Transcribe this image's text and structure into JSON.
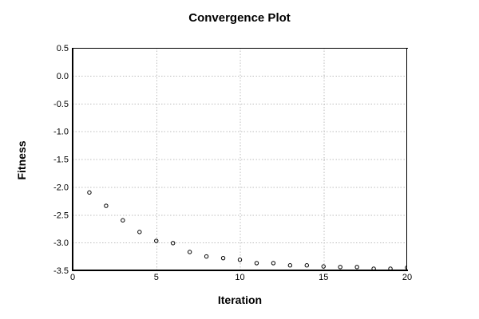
{
  "chart_data": {
    "type": "scatter",
    "title": "Convergence Plot",
    "xlabel": "Iteration",
    "ylabel": "Fitness",
    "x": [
      1,
      2,
      3,
      4,
      5,
      6,
      7,
      8,
      9,
      10,
      11,
      12,
      13,
      14,
      15,
      16,
      17,
      18,
      19,
      20
    ],
    "y": [
      -2.1,
      -2.34,
      -2.6,
      -2.81,
      -2.97,
      -3.01,
      -3.17,
      -3.25,
      -3.28,
      -3.31,
      -3.37,
      -3.37,
      -3.41,
      -3.41,
      -3.43,
      -3.44,
      -3.44,
      -3.47,
      -3.47,
      -3.45
    ],
    "xlim": [
      0,
      20
    ],
    "ylim": [
      -3.5,
      0.5
    ],
    "xticks": [
      0,
      5,
      10,
      15,
      20
    ],
    "yticks": [
      0.5,
      0.0,
      -0.5,
      -1.0,
      -1.5,
      -2.0,
      -2.5,
      -3.0,
      -3.5
    ],
    "grid": "dotted",
    "legend": "none",
    "marker": "open-circle",
    "colors": {
      "marker": "#000000",
      "grid": "#bdbdbd",
      "frame": "#000000",
      "background": "#ffffff",
      "text": "#000000"
    }
  }
}
